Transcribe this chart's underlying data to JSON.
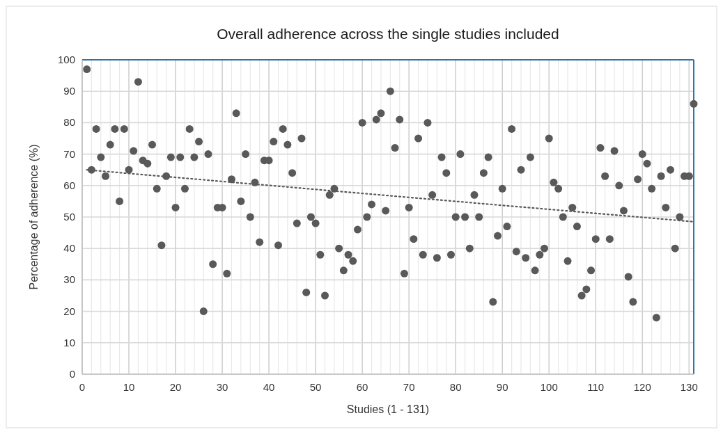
{
  "chart_data": {
    "type": "scatter",
    "title": "Overall adherence across the single studies included",
    "xlabel": "Studies (1 - 131)",
    "ylabel": "Percentage of adherence (%)",
    "x": [
      1,
      2,
      3,
      4,
      5,
      6,
      7,
      8,
      9,
      10,
      11,
      12,
      13,
      14,
      15,
      16,
      17,
      18,
      19,
      20,
      21,
      22,
      23,
      24,
      25,
      26,
      27,
      28,
      29,
      30,
      31,
      32,
      33,
      34,
      35,
      36,
      37,
      38,
      39,
      40,
      41,
      42,
      43,
      44,
      45,
      46,
      47,
      48,
      49,
      50,
      51,
      52,
      53,
      54,
      55,
      56,
      57,
      58,
      59,
      60,
      61,
      62,
      63,
      64,
      65,
      66,
      67,
      68,
      69,
      70,
      71,
      72,
      73,
      74,
      75,
      76,
      77,
      78,
      79,
      80,
      81,
      82,
      83,
      84,
      85,
      86,
      87,
      88,
      89,
      90,
      91,
      92,
      93,
      94,
      95,
      96,
      97,
      98,
      99,
      100,
      101,
      102,
      103,
      104,
      105,
      106,
      107,
      108,
      109,
      110,
      111,
      112,
      113,
      114,
      115,
      116,
      117,
      118,
      119,
      120,
      121,
      122,
      123,
      124,
      125,
      126,
      127,
      128,
      129,
      130,
      131
    ],
    "series": [
      {
        "color": "#595959",
        "marker": "circle",
        "values": [
          97,
          65,
          78,
          69,
          63,
          73,
          78,
          55,
          78,
          65,
          71,
          93,
          68,
          67,
          73,
          59,
          41,
          63,
          69,
          53,
          69,
          59,
          78,
          69,
          74,
          20,
          70,
          35,
          53,
          53,
          32,
          62,
          83,
          55,
          70,
          50,
          61,
          42,
          68,
          68,
          74,
          41,
          78,
          73,
          64,
          48,
          75,
          26,
          50,
          48,
          38,
          25,
          57,
          59,
          40,
          33,
          38,
          36,
          46,
          80,
          50,
          54,
          81,
          83,
          52,
          90,
          72,
          81,
          32,
          53,
          43,
          75,
          38,
          80,
          57,
          37,
          69,
          64,
          38,
          50,
          70,
          50,
          40,
          57,
          50,
          64,
          69,
          23,
          44,
          59,
          47,
          78,
          39,
          65,
          37,
          69,
          33,
          38,
          40,
          75,
          61,
          59,
          50,
          36,
          53,
          47,
          25,
          27,
          33,
          43,
          72,
          63,
          43,
          71,
          60,
          52,
          31,
          23,
          62,
          70,
          67,
          59,
          18,
          63,
          53,
          65,
          40,
          50,
          63,
          63,
          86
        ]
      },
      {
        "type": "line",
        "color": "#595959",
        "marker": "none",
        "line_style": "dotted",
        "x": [
          1,
          131
        ],
        "values": [
          65,
          48.5
        ]
      }
    ],
    "xlim": [
      0,
      131
    ],
    "ylim": [
      0,
      100
    ],
    "xticks": [
      0,
      {
        "value": 2,
        "label": null
      },
      {
        "value": 4,
        "label": null
      },
      {
        "value": 6,
        "label": null
      },
      {
        "value": 8,
        "label": null
      },
      10,
      {
        "value": 12,
        "label": null
      },
      {
        "value": 14,
        "label": null
      },
      {
        "value": 16,
        "label": null
      },
      {
        "value": 18,
        "label": null
      },
      20,
      {
        "value": 22,
        "label": null
      },
      {
        "value": 24,
        "label": null
      },
      {
        "value": 26,
        "label": null
      },
      {
        "value": 28,
        "label": null
      },
      30,
      {
        "value": 32,
        "label": null
      },
      {
        "value": 34,
        "label": null
      },
      {
        "value": 36,
        "label": null
      },
      {
        "value": 38,
        "label": null
      },
      40,
      {
        "value": 42,
        "label": null
      },
      {
        "value": 44,
        "label": null
      },
      {
        "value": 46,
        "label": null
      },
      {
        "value": 48,
        "label": null
      },
      50,
      {
        "value": 52,
        "label": null
      },
      {
        "value": 54,
        "label": null
      },
      {
        "value": 56,
        "label": null
      },
      {
        "value": 58,
        "label": null
      },
      60,
      {
        "value": 62,
        "label": null
      },
      {
        "value": 64,
        "label": null
      },
      {
        "value": 66,
        "label": null
      },
      {
        "value": 68,
        "label": null
      },
      70,
      {
        "value": 72,
        "label": null
      },
      {
        "value": 74,
        "label": null
      },
      {
        "value": 76,
        "label": null
      },
      {
        "value": 78,
        "label": null
      },
      80,
      {
        "value": 82,
        "label": null
      },
      {
        "value": 84,
        "label": null
      },
      {
        "value": 86,
        "label": null
      },
      {
        "value": 88,
        "label": null
      },
      90,
      {
        "value": 92,
        "label": null
      },
      {
        "value": 94,
        "label": null
      },
      {
        "value": 96,
        "label": null
      },
      {
        "value": 98,
        "label": null
      },
      100,
      {
        "value": 102,
        "label": null
      },
      {
        "value": 104,
        "label": null
      },
      {
        "value": 106,
        "label": null
      },
      {
        "value": 108,
        "label": null
      },
      110,
      {
        "value": 112,
        "label": null
      },
      {
        "value": 114,
        "label": null
      },
      {
        "value": 116,
        "label": null
      },
      {
        "value": 118,
        "label": null
      },
      120,
      {
        "value": 122,
        "label": null
      },
      {
        "value": 124,
        "label": null
      },
      {
        "value": 126,
        "label": null
      },
      {
        "value": 128,
        "label": null
      },
      130
    ],
    "yticks": [
      0,
      10,
      20,
      30,
      40,
      50,
      60,
      70,
      80,
      90,
      100
    ],
    "grid": true
  }
}
